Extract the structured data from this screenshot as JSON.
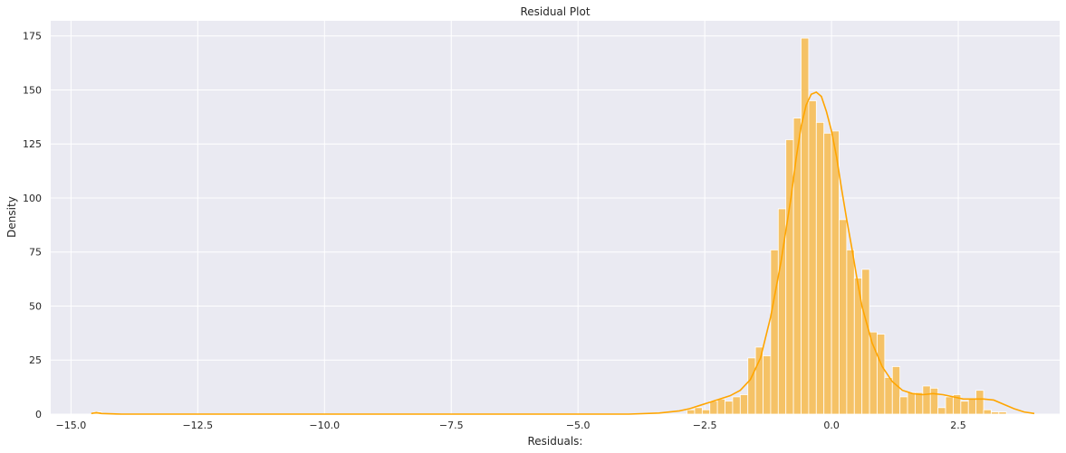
{
  "chart_data": {
    "type": "histogram",
    "title": "Residual Plot",
    "xlabel": "Residuals:",
    "ylabel": "Density",
    "xlim": [
      -15.4,
      4.5
    ],
    "ylim": [
      0,
      182
    ],
    "xticks": [
      -15.0,
      -12.5,
      -10.0,
      -7.5,
      -5.0,
      -2.5,
      0.0,
      2.5
    ],
    "xtick_labels": [
      "−15.0",
      "−12.5",
      "−10.0",
      "−7.5",
      "−5.0",
      "−2.5",
      "0.0",
      "2.5"
    ],
    "yticks": [
      0,
      25,
      50,
      75,
      100,
      125,
      150,
      175
    ],
    "ytick_labels": [
      "0",
      "25",
      "50",
      "75",
      "100",
      "125",
      "150",
      "175"
    ],
    "grid": true,
    "background": "#EAEAF2",
    "bar_color": "#F5C266",
    "bar_edge_color": "#FFFFFF",
    "kde_color": "#FFA500",
    "bins": [
      {
        "x0": -14.55,
        "x1": -14.4,
        "count": 1
      },
      {
        "x0": -2.85,
        "x1": -2.7,
        "count": 2
      },
      {
        "x0": -2.7,
        "x1": -2.55,
        "count": 3
      },
      {
        "x0": -2.55,
        "x1": -2.4,
        "count": 2
      },
      {
        "x0": -2.4,
        "x1": -2.25,
        "count": 6
      },
      {
        "x0": -2.25,
        "x1": -2.1,
        "count": 7
      },
      {
        "x0": -2.1,
        "x1": -1.95,
        "count": 6
      },
      {
        "x0": -1.95,
        "x1": -1.8,
        "count": 8
      },
      {
        "x0": -1.8,
        "x1": -1.65,
        "count": 9
      },
      {
        "x0": -1.65,
        "x1": -1.5,
        "count": 26
      },
      {
        "x0": -1.5,
        "x1": -1.35,
        "count": 31
      },
      {
        "x0": -1.35,
        "x1": -1.2,
        "count": 27
      },
      {
        "x0": -1.2,
        "x1": -1.05,
        "count": 76
      },
      {
        "x0": -1.05,
        "x1": -0.9,
        "count": 95
      },
      {
        "x0": -0.9,
        "x1": -0.75,
        "count": 127
      },
      {
        "x0": -0.75,
        "x1": -0.6,
        "count": 137
      },
      {
        "x0": -0.6,
        "x1": -0.45,
        "count": 174
      },
      {
        "x0": -0.45,
        "x1": -0.3,
        "count": 145
      },
      {
        "x0": -0.3,
        "x1": -0.15,
        "count": 135
      },
      {
        "x0": -0.15,
        "x1": 0.0,
        "count": 130
      },
      {
        "x0": 0.0,
        "x1": 0.15,
        "count": 131
      },
      {
        "x0": 0.15,
        "x1": 0.3,
        "count": 90
      },
      {
        "x0": 0.3,
        "x1": 0.45,
        "count": 76
      },
      {
        "x0": 0.45,
        "x1": 0.6,
        "count": 63
      },
      {
        "x0": 0.6,
        "x1": 0.75,
        "count": 67
      },
      {
        "x0": 0.75,
        "x1": 0.9,
        "count": 38
      },
      {
        "x0": 0.9,
        "x1": 1.05,
        "count": 37
      },
      {
        "x0": 1.05,
        "x1": 1.2,
        "count": 17
      },
      {
        "x0": 1.2,
        "x1": 1.35,
        "count": 22
      },
      {
        "x0": 1.35,
        "x1": 1.5,
        "count": 8
      },
      {
        "x0": 1.5,
        "x1": 1.65,
        "count": 10
      },
      {
        "x0": 1.65,
        "x1": 1.8,
        "count": 10
      },
      {
        "x0": 1.8,
        "x1": 1.95,
        "count": 13
      },
      {
        "x0": 1.95,
        "x1": 2.1,
        "count": 12
      },
      {
        "x0": 2.1,
        "x1": 2.25,
        "count": 3
      },
      {
        "x0": 2.25,
        "x1": 2.4,
        "count": 8
      },
      {
        "x0": 2.4,
        "x1": 2.55,
        "count": 9
      },
      {
        "x0": 2.55,
        "x1": 2.7,
        "count": 6
      },
      {
        "x0": 2.7,
        "x1": 2.85,
        "count": 7
      },
      {
        "x0": 2.85,
        "x1": 3.0,
        "count": 11
      },
      {
        "x0": 3.0,
        "x1": 3.15,
        "count": 2
      },
      {
        "x0": 3.15,
        "x1": 3.3,
        "count": 1
      },
      {
        "x0": 3.3,
        "x1": 3.45,
        "count": 1
      }
    ],
    "kde": {
      "x": [
        -14.6,
        -14.5,
        -14.4,
        -14.0,
        -12.0,
        -10.0,
        -8.0,
        -6.0,
        -4.0,
        -3.4,
        -3.0,
        -2.8,
        -2.6,
        -2.4,
        -2.2,
        -2.0,
        -1.8,
        -1.6,
        -1.4,
        -1.2,
        -1.0,
        -0.9,
        -0.8,
        -0.7,
        -0.6,
        -0.5,
        -0.4,
        -0.3,
        -0.2,
        -0.1,
        0.0,
        0.1,
        0.2,
        0.3,
        0.4,
        0.5,
        0.6,
        0.8,
        1.0,
        1.2,
        1.4,
        1.6,
        1.8,
        2.0,
        2.2,
        2.4,
        2.6,
        2.8,
        3.0,
        3.2,
        3.4,
        3.6,
        3.8,
        4.0
      ],
      "y": [
        0.3,
        0.7,
        0.3,
        0,
        0,
        0,
        0,
        0,
        0,
        0.5,
        1.5,
        2.5,
        4,
        5.5,
        7,
        8.5,
        11,
        16,
        26,
        45,
        70,
        85,
        100,
        118,
        133,
        143,
        148,
        149,
        147,
        140,
        131,
        119,
        104,
        90,
        77,
        63,
        50,
        33,
        22,
        15,
        11,
        9.5,
        9,
        9.5,
        9,
        8,
        7,
        7,
        7,
        6.5,
        4.5,
        2.5,
        1,
        0.3
      ]
    }
  }
}
